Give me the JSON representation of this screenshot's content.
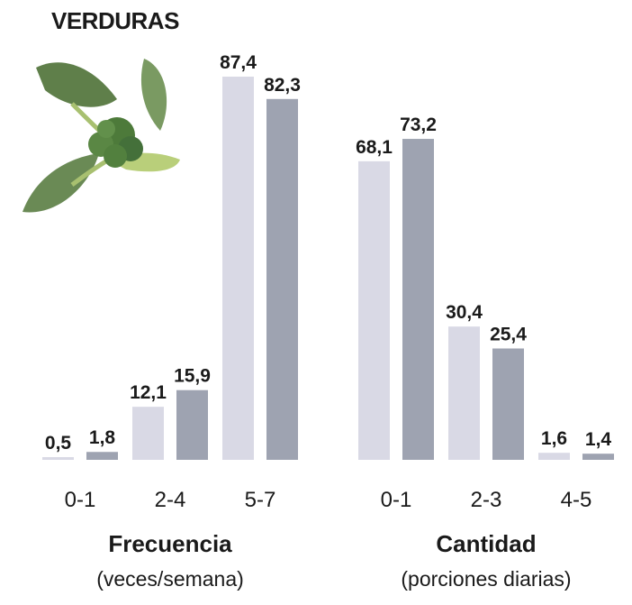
{
  "title": "VERDURAS",
  "illustration": "broccoli",
  "colors": {
    "series_light": "#d9d9e5",
    "series_dark": "#9ea3b1",
    "text": "#1a1a1a"
  },
  "chart_data": [
    {
      "type": "bar",
      "title": "Frecuencia",
      "subtitle": "(veces/semana)",
      "categories": [
        "0-1",
        "2-4",
        "5-7"
      ],
      "series": [
        {
          "values": [
            0.5,
            12.1,
            87.4
          ],
          "labels": [
            "0,5",
            "12,1",
            "87,4"
          ]
        },
        {
          "values": [
            1.8,
            15.9,
            82.3
          ],
          "labels": [
            "1,8",
            "15,9",
            "82,3"
          ]
        }
      ],
      "ylim": [
        0,
        87.4
      ],
      "grid": false
    },
    {
      "type": "bar",
      "title": "Cantidad",
      "subtitle": "(porciones diarias)",
      "categories": [
        "0-1",
        "2-3",
        "4-5"
      ],
      "series": [
        {
          "values": [
            68.1,
            30.4,
            1.6
          ],
          "labels": [
            "68,1",
            "30,4",
            "1,6"
          ]
        },
        {
          "values": [
            73.2,
            25.4,
            1.4
          ],
          "labels": [
            "73,2",
            "25,4",
            "1,4"
          ]
        }
      ],
      "ylim": [
        0,
        87.4
      ],
      "grid": false
    }
  ]
}
